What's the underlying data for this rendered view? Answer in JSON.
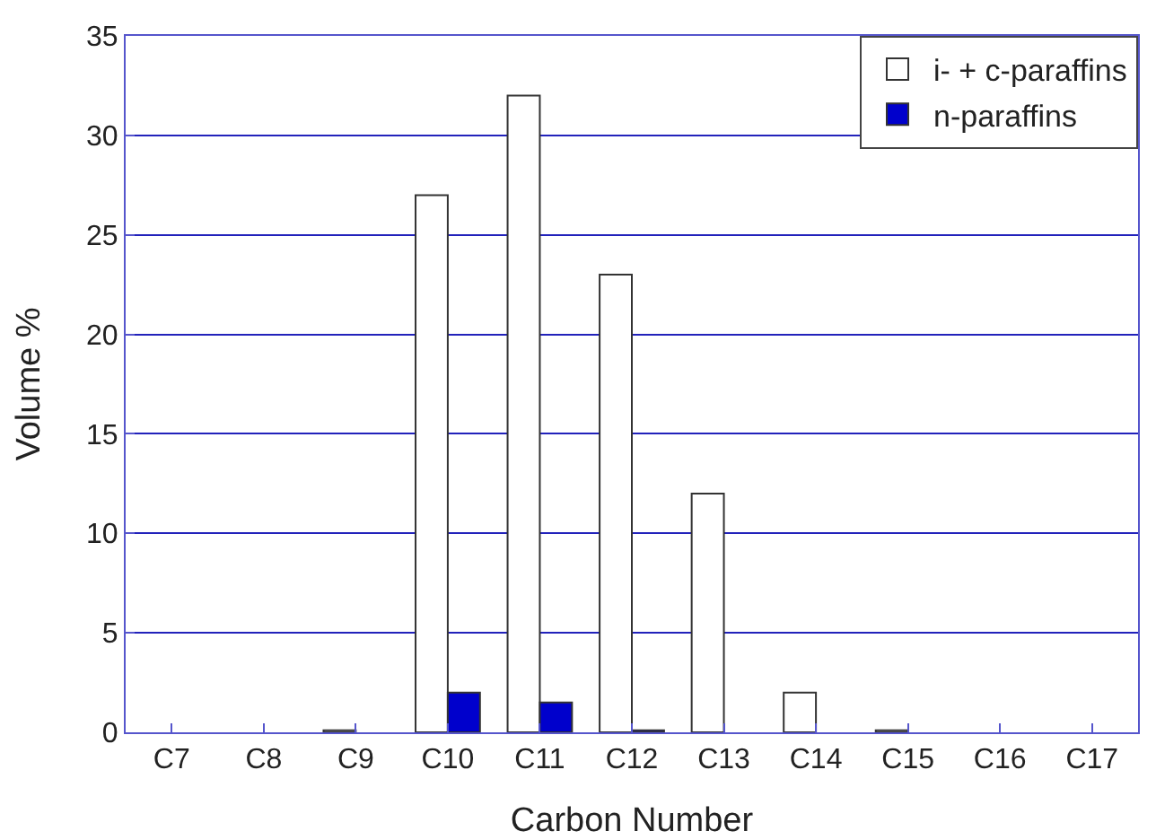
{
  "chart_data": {
    "type": "bar",
    "xlabel": "Carbon Number",
    "ylabel": "Volume %",
    "categories": [
      "C7",
      "C8",
      "C9",
      "C10",
      "C11",
      "C12",
      "C13",
      "C14",
      "C15",
      "C16",
      "C17"
    ],
    "series": [
      {
        "name": "i- + c-paraffins",
        "color": "#ffffff",
        "values": [
          null,
          null,
          0.1,
          27,
          32,
          23,
          12,
          2,
          0.1,
          null,
          null
        ]
      },
      {
        "name": "n-paraffins",
        "color": "#0000cc",
        "values": [
          null,
          null,
          null,
          2,
          1.5,
          0.1,
          null,
          null,
          null,
          null,
          null
        ]
      }
    ],
    "ylim": [
      0,
      35
    ],
    "yticks": [
      0,
      5,
      10,
      15,
      20,
      25,
      30,
      35
    ],
    "grid": "y",
    "legend": "top right"
  }
}
